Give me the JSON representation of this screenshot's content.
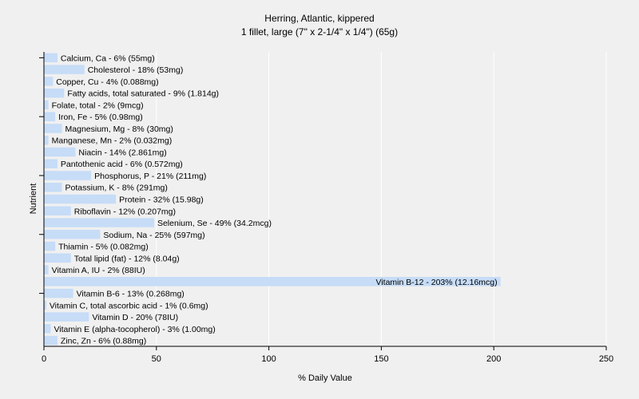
{
  "chart_data": {
    "type": "bar",
    "orientation": "horizontal",
    "title": "Herring, Atlantic, kippered",
    "subtitle": "1 fillet, large (7\" x 2-1/4\" x 1/4\") (65g)",
    "xlabel": "% Daily Value",
    "ylabel": "Nutrient",
    "xlim": [
      0,
      250
    ],
    "xticks": [
      0,
      50,
      100,
      150,
      200,
      250
    ],
    "grid": true,
    "bar_color": "#c6dcf7",
    "grid_color": "#ffffff",
    "categories": [
      "Calcium, Ca",
      "Cholesterol",
      "Copper, Cu",
      "Fatty acids, total saturated",
      "Folate, total",
      "Iron, Fe",
      "Magnesium, Mg",
      "Manganese, Mn",
      "Niacin",
      "Pantothenic acid",
      "Phosphorus, P",
      "Potassium, K",
      "Protein",
      "Riboflavin",
      "Selenium, Se",
      "Sodium, Na",
      "Thiamin",
      "Total lipid (fat)",
      "Vitamin A, IU",
      "Vitamin B-12",
      "Vitamin B-6",
      "Vitamin C, total ascorbic acid",
      "Vitamin D",
      "Vitamin E (alpha-tocopherol)",
      "Zinc, Zn"
    ],
    "values": [
      6,
      18,
      4,
      9,
      2,
      5,
      8,
      2,
      14,
      6,
      21,
      8,
      32,
      12,
      49,
      25,
      5,
      12,
      2,
      203,
      13,
      1,
      20,
      3,
      6
    ],
    "labels": [
      "Calcium, Ca - 6% (55mg)",
      "Cholesterol - 18% (53mg)",
      "Copper, Cu - 4% (0.088mg)",
      "Fatty acids, total saturated - 9% (1.814g)",
      "Folate, total - 2% (9mcg)",
      "Iron, Fe - 5% (0.98mg)",
      "Magnesium, Mg - 8% (30mg)",
      "Manganese, Mn - 2% (0.032mg)",
      "Niacin - 14% (2.861mg)",
      "Pantothenic acid - 6% (0.572mg)",
      "Phosphorus, P - 21% (211mg)",
      "Potassium, K - 8% (291mg)",
      "Protein - 32% (15.98g)",
      "Riboflavin - 12% (0.207mg)",
      "Selenium, Se - 49% (34.2mcg)",
      "Sodium, Na - 25% (597mg)",
      "Thiamin - 5% (0.082mg)",
      "Total lipid (fat) - 12% (8.04g)",
      "Vitamin A, IU - 2% (88IU)",
      "Vitamin B-12 - 203% (12.16mcg)",
      "Vitamin B-6 - 13% (0.268mg)",
      "Vitamin C, total ascorbic acid - 1% (0.6mg)",
      "Vitamin D - 20% (78IU)",
      "Vitamin E (alpha-tocopherol) - 3% (1.00mg)",
      "Zinc, Zn - 6% (0.88mg)"
    ]
  }
}
